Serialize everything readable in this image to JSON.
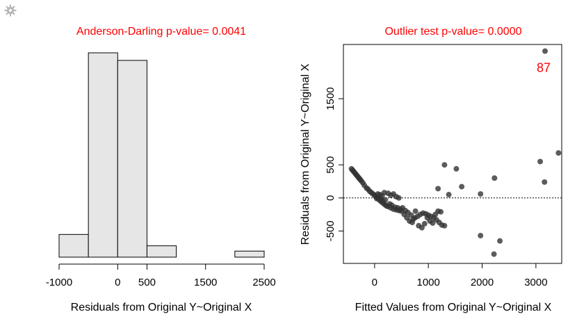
{
  "toolbar": {
    "settings_icon": "gear-icon",
    "icon_color": "#b5b5b5"
  },
  "chart_data": [
    {
      "type": "bar",
      "title": "Anderson-Darling p-value= 0.0041",
      "title_color": "#ff0000",
      "xlabel": "Residuals from Original Y~Original X",
      "ylabel": "",
      "bins": [
        {
          "from": -1000,
          "to": -500,
          "count": 3
        },
        {
          "from": -500,
          "to": 0,
          "count": 27
        },
        {
          "from": 0,
          "to": 500,
          "count": 26
        },
        {
          "from": 500,
          "to": 1000,
          "count": 1.5
        },
        {
          "from": 1000,
          "to": 1500,
          "count": 0
        },
        {
          "from": 1500,
          "to": 2000,
          "count": 0
        },
        {
          "from": 2000,
          "to": 2500,
          "count": 0.8
        }
      ],
      "xlim": [
        -1000,
        2500
      ],
      "ylim": [
        0,
        27
      ],
      "xticks": [
        -1000,
        0,
        500,
        1500,
        2500
      ],
      "bar_fill": "#e6e6e6",
      "grid": false
    },
    {
      "type": "scatter",
      "title": "Outlier test p-value= 0.0000",
      "title_color": "#ff0000",
      "xlabel": "Fitted Values from Original Y~Original X",
      "ylabel": "Residuals from Original Y~Original X",
      "xlim": [
        -580,
        3480
      ],
      "ylim": [
        -990,
        2320
      ],
      "xticks": [
        0,
        1000,
        2000,
        3000
      ],
      "yticks": [
        -500,
        0,
        500,
        1500
      ],
      "reference_line_y": 0,
      "grid": false,
      "point_color": "#333333",
      "annotation": {
        "text": "87",
        "x": 3170,
        "y": 1970,
        "color": "#ff0000"
      },
      "points": [
        [
          -430,
          440
        ],
        [
          -410,
          420
        ],
        [
          -390,
          400
        ],
        [
          -370,
          380
        ],
        [
          -350,
          360
        ],
        [
          -330,
          340
        ],
        [
          -310,
          320
        ],
        [
          -290,
          300
        ],
        [
          -270,
          280
        ],
        [
          -250,
          260
        ],
        [
          -220,
          230
        ],
        [
          -190,
          190
        ],
        [
          -150,
          150
        ],
        [
          -120,
          130
        ],
        [
          -90,
          100
        ],
        [
          -60,
          80
        ],
        [
          -30,
          60
        ],
        [
          0,
          40
        ],
        [
          20,
          20
        ],
        [
          40,
          -10
        ],
        [
          60,
          0
        ],
        [
          80,
          -20
        ],
        [
          100,
          -40
        ],
        [
          130,
          -60
        ],
        [
          160,
          -80
        ],
        [
          190,
          -100
        ],
        [
          220,
          -120
        ],
        [
          250,
          -130
        ],
        [
          300,
          -150
        ],
        [
          350,
          -170
        ],
        [
          400,
          -180
        ],
        [
          450,
          -190
        ],
        [
          500,
          -200
        ],
        [
          550,
          -250
        ],
        [
          600,
          -300
        ],
        [
          650,
          -350
        ],
        [
          700,
          -370
        ],
        [
          750,
          -300
        ],
        [
          800,
          -280
        ],
        [
          850,
          -250
        ],
        [
          900,
          -230
        ],
        [
          950,
          -240
        ],
        [
          1000,
          -260
        ],
        [
          1050,
          -280
        ],
        [
          1100,
          -300
        ],
        [
          1150,
          -330
        ],
        [
          1200,
          -370
        ],
        [
          1250,
          -410
        ],
        [
          1300,
          -420
        ],
        [
          60,
          60
        ],
        [
          100,
          50
        ],
        [
          140,
          30
        ],
        [
          180,
          80
        ],
        [
          250,
          70
        ],
        [
          300,
          40
        ],
        [
          350,
          60
        ],
        [
          400,
          20
        ],
        [
          450,
          0
        ],
        [
          120,
          -20
        ],
        [
          150,
          -50
        ],
        [
          200,
          -30
        ],
        [
          280,
          -90
        ],
        [
          320,
          -110
        ],
        [
          380,
          -140
        ],
        [
          430,
          -150
        ],
        [
          480,
          -170
        ],
        [
          520,
          -150
        ],
        [
          570,
          -190
        ],
        [
          620,
          -220
        ],
        [
          680,
          -260
        ],
        [
          720,
          -320
        ],
        [
          760,
          -200
        ],
        [
          820,
          -420
        ],
        [
          880,
          -450
        ],
        [
          930,
          -390
        ],
        [
          980,
          -300
        ],
        [
          1030,
          -350
        ],
        [
          1080,
          -380
        ],
        [
          1130,
          -250
        ],
        [
          1180,
          -200
        ],
        [
          1230,
          -210
        ],
        [
          1180,
          140
        ],
        [
          1300,
          500
        ],
        [
          1380,
          50
        ],
        [
          1520,
          440
        ],
        [
          1620,
          170
        ],
        [
          1970,
          60
        ],
        [
          2230,
          300
        ],
        [
          1970,
          -570
        ],
        [
          2330,
          -650
        ],
        [
          2220,
          -850
        ],
        [
          3080,
          550
        ],
        [
          3160,
          240
        ],
        [
          3420,
          680
        ],
        [
          3170,
          2220
        ]
      ]
    }
  ]
}
